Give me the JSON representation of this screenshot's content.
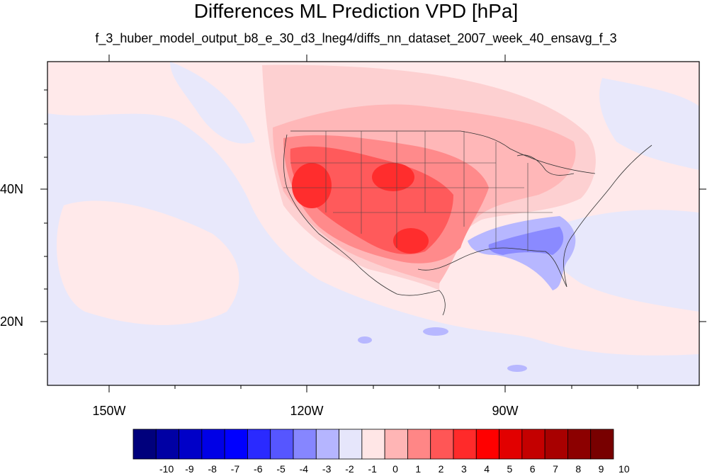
{
  "title": "Differences ML Prediction VPD [hPa]",
  "subtitle": "f_3_huber_model_output_b8_e_30_d3_lneg4/diffs_nn_dataset_2007_week_40_ensavg_f_3",
  "map": {
    "lat_labels": [
      "40N",
      "20N"
    ],
    "lon_labels": [
      "150W",
      "120W",
      "90W"
    ]
  },
  "colorbar": {
    "labels": [
      "-10",
      "-9",
      "-8",
      "-7",
      "-6",
      "-5",
      "-4",
      "-3",
      "-2",
      "-1",
      "0",
      "1",
      "2",
      "3",
      "4",
      "5",
      "6",
      "7",
      "8",
      "9",
      "10"
    ],
    "colors": [
      "#00007c",
      "#0000a4",
      "#0000c8",
      "#0000e6",
      "#0000ff",
      "#2a2aff",
      "#5656ff",
      "#8686ff",
      "#b5b5ff",
      "#e6e6fb",
      "#ffe6e6",
      "#ffb5b5",
      "#ff8686",
      "#ff5656",
      "#ff2a2a",
      "#ff0000",
      "#e20000",
      "#c40000",
      "#a80000",
      "#8c0000",
      "#780000"
    ]
  }
}
